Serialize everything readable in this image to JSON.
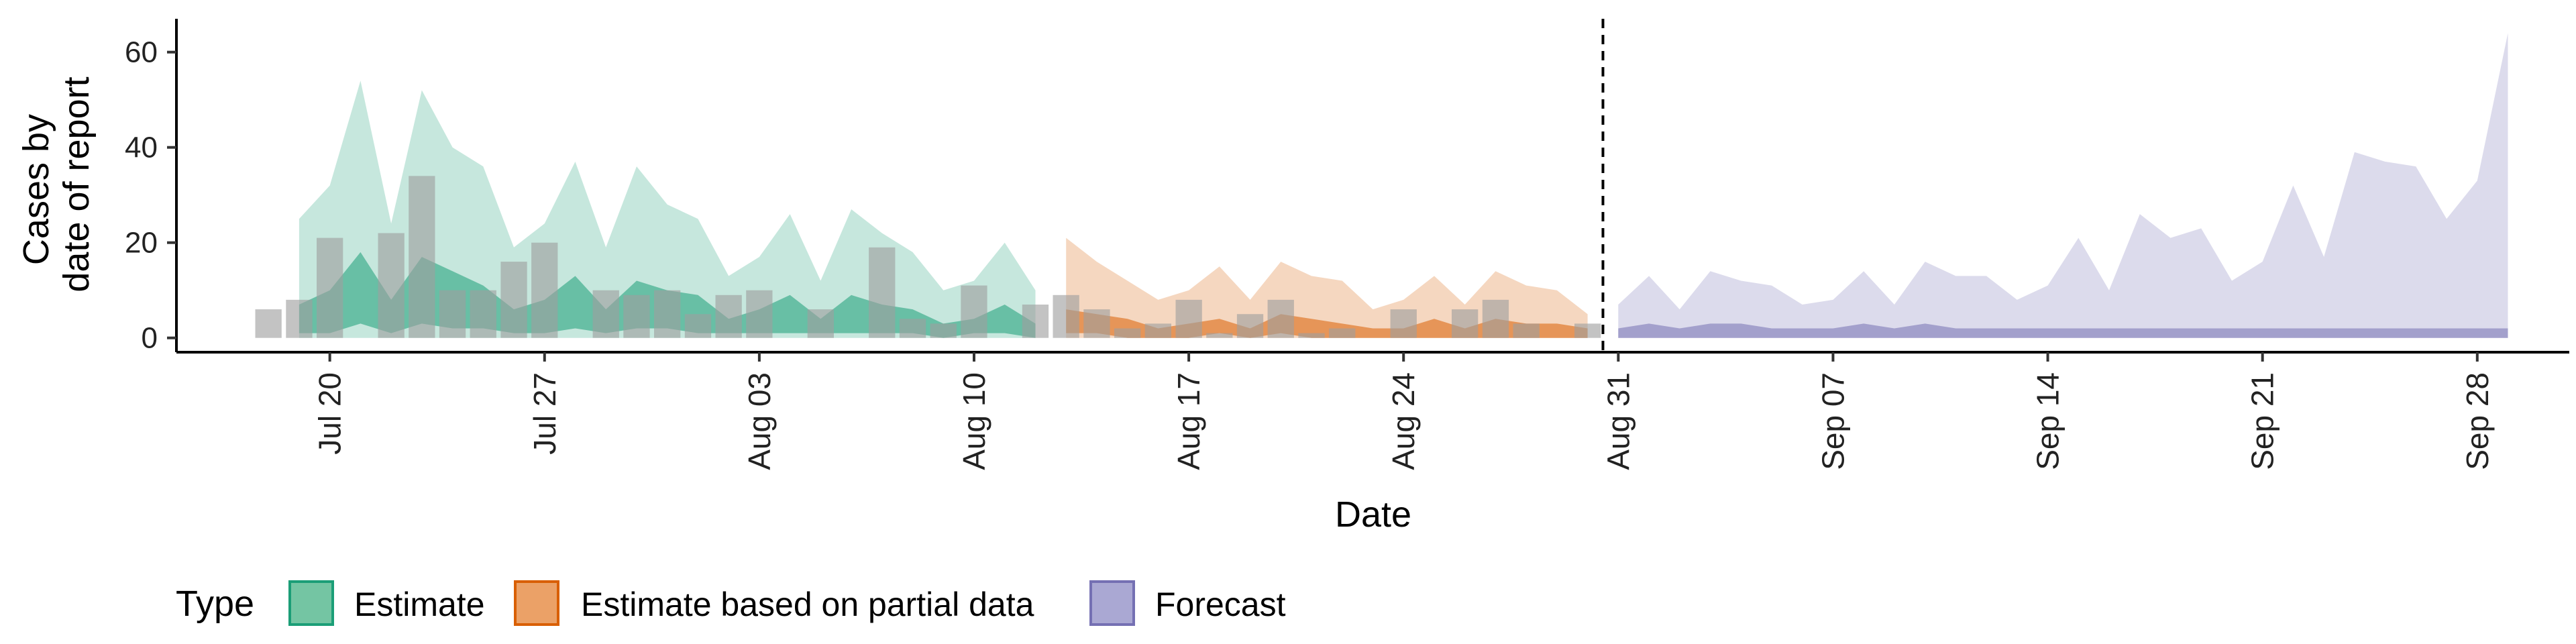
{
  "chart_data": {
    "type": "area",
    "xlabel": "Date",
    "ylabel_lines": [
      "Cases by",
      "date of report"
    ],
    "ylim": [
      -3,
      67
    ],
    "xlim": [
      "2020-07-15",
      "2020-10-01"
    ],
    "y_ticks": [
      0,
      20,
      40,
      60
    ],
    "x_ticks": [
      {
        "date": "2020-07-20",
        "label": "Jul 20"
      },
      {
        "date": "2020-07-27",
        "label": "Jul 27"
      },
      {
        "date": "2020-08-03",
        "label": "Aug 03"
      },
      {
        "date": "2020-08-10",
        "label": "Aug 10"
      },
      {
        "date": "2020-08-17",
        "label": "Aug 17"
      },
      {
        "date": "2020-08-24",
        "label": "Aug 24"
      },
      {
        "date": "2020-08-31",
        "label": "Aug 31"
      },
      {
        "date": "2020-09-07",
        "label": "Sep 07"
      },
      {
        "date": "2020-09-14",
        "label": "Sep 14"
      },
      {
        "date": "2020-09-21",
        "label": "Sep 21"
      },
      {
        "date": "2020-09-28",
        "label": "Sep 28"
      }
    ],
    "reference_line_date": "2020-08-30",
    "grid": false,
    "legend": {
      "position": "bottom",
      "title": "Type",
      "entries": [
        {
          "label": "Estimate",
          "fill": "#74c5a3",
          "stroke": "#1b9e77"
        },
        {
          "label": "Estimate based on partial data",
          "fill": "#eba167",
          "stroke": "#d95f02"
        },
        {
          "label": "Forecast",
          "fill": "#aaa8d3",
          "stroke": "#7570b3"
        }
      ]
    },
    "bars": {
      "color": "#9e9e9e",
      "dates": [
        "2020-07-18",
        "2020-07-19",
        "2020-07-20",
        "2020-07-21",
        "2020-07-22",
        "2020-07-23",
        "2020-07-24",
        "2020-07-25",
        "2020-07-26",
        "2020-07-27",
        "2020-07-28",
        "2020-07-29",
        "2020-07-30",
        "2020-07-31",
        "2020-08-01",
        "2020-08-02",
        "2020-08-03",
        "2020-08-04",
        "2020-08-05",
        "2020-08-06",
        "2020-08-07",
        "2020-08-08",
        "2020-08-09",
        "2020-08-10",
        "2020-08-11",
        "2020-08-12",
        "2020-08-13",
        "2020-08-14",
        "2020-08-15",
        "2020-08-16",
        "2020-08-17",
        "2020-08-18",
        "2020-08-19",
        "2020-08-20",
        "2020-08-21",
        "2020-08-22",
        "2020-08-23",
        "2020-08-24",
        "2020-08-25",
        "2020-08-26",
        "2020-08-27",
        "2020-08-28",
        "2020-08-29",
        "2020-08-30"
      ],
      "values": [
        6,
        8,
        21,
        0,
        22,
        34,
        10,
        10,
        16,
        20,
        0,
        10,
        9,
        10,
        5,
        9,
        10,
        0,
        6,
        0,
        19,
        4,
        3,
        11,
        0,
        7,
        9,
        6,
        2,
        3,
        8,
        1,
        5,
        8,
        1,
        2,
        0,
        6,
        0,
        6,
        8,
        3,
        0,
        3
      ]
    },
    "series": [
      {
        "name": "Estimate",
        "fill": "#1b9e77",
        "outer_opacity": 0.25,
        "inner_opacity": 0.55,
        "dates": [
          "2020-07-19",
          "2020-07-20",
          "2020-07-21",
          "2020-07-22",
          "2020-07-23",
          "2020-07-24",
          "2020-07-25",
          "2020-07-26",
          "2020-07-27",
          "2020-07-28",
          "2020-07-29",
          "2020-07-30",
          "2020-07-31",
          "2020-08-01",
          "2020-08-02",
          "2020-08-03",
          "2020-08-04",
          "2020-08-05",
          "2020-08-06",
          "2020-08-07",
          "2020-08-08",
          "2020-08-09",
          "2020-08-10",
          "2020-08-11",
          "2020-08-12"
        ],
        "upper_90": [
          25,
          32,
          54,
          24,
          52,
          40,
          36,
          19,
          24,
          37,
          19,
          36,
          28,
          25,
          13,
          17,
          26,
          12,
          27,
          22,
          18,
          10,
          12,
          20,
          10
        ],
        "lower_90": [
          0,
          0,
          0,
          0,
          0,
          0,
          0,
          0,
          0,
          0,
          0,
          0,
          0,
          0,
          0,
          0,
          0,
          0,
          0,
          0,
          0,
          0,
          0,
          0,
          0
        ],
        "upper_50": [
          7,
          10,
          18,
          8,
          17,
          14,
          11,
          6,
          8,
          13,
          6,
          12,
          10,
          9,
          4,
          6,
          9,
          4,
          9,
          7,
          6,
          3,
          4,
          7,
          3
        ],
        "lower_50": [
          1,
          1,
          3,
          1,
          3,
          2,
          2,
          1,
          1,
          2,
          1,
          2,
          2,
          1,
          1,
          1,
          1,
          1,
          1,
          1,
          1,
          0,
          1,
          1,
          0
        ]
      },
      {
        "name": "Estimate based on partial data",
        "fill": "#d95f02",
        "outer_opacity": 0.25,
        "inner_opacity": 0.55,
        "dates": [
          "2020-08-13",
          "2020-08-14",
          "2020-08-15",
          "2020-08-16",
          "2020-08-17",
          "2020-08-18",
          "2020-08-19",
          "2020-08-20",
          "2020-08-21",
          "2020-08-22",
          "2020-08-23",
          "2020-08-24",
          "2020-08-25",
          "2020-08-26",
          "2020-08-27",
          "2020-08-28",
          "2020-08-29",
          "2020-08-30"
        ],
        "upper_90": [
          21,
          16,
          12,
          8,
          10,
          15,
          8,
          16,
          13,
          12,
          6,
          8,
          13,
          7,
          14,
          11,
          10,
          5
        ],
        "lower_90": [
          0,
          0,
          0,
          0,
          0,
          0,
          0,
          0,
          0,
          0,
          0,
          0,
          0,
          0,
          0,
          0,
          0,
          0
        ],
        "upper_50": [
          6,
          5,
          4,
          2,
          3,
          4,
          2,
          5,
          4,
          3,
          2,
          2,
          4,
          2,
          4,
          3,
          3,
          2
        ],
        "lower_50": [
          1,
          1,
          0,
          0,
          0,
          1,
          0,
          1,
          0,
          0,
          0,
          0,
          0,
          0,
          0,
          0,
          0,
          0
        ]
      },
      {
        "name": "Forecast",
        "fill": "#7570b3",
        "outer_opacity": 0.25,
        "inner_opacity": 0.55,
        "dates": [
          "2020-08-31",
          "2020-09-01",
          "2020-09-02",
          "2020-09-03",
          "2020-09-04",
          "2020-09-05",
          "2020-09-06",
          "2020-09-07",
          "2020-09-08",
          "2020-09-09",
          "2020-09-10",
          "2020-09-11",
          "2020-09-12",
          "2020-09-13",
          "2020-09-14",
          "2020-09-15",
          "2020-09-16",
          "2020-09-17",
          "2020-09-18",
          "2020-09-19",
          "2020-09-20",
          "2020-09-21",
          "2020-09-22",
          "2020-09-23",
          "2020-09-24",
          "2020-09-25",
          "2020-09-26",
          "2020-09-27",
          "2020-09-28",
          "2020-09-29"
        ],
        "upper_90": [
          7,
          13,
          6,
          14,
          12,
          11,
          7,
          8,
          14,
          7,
          16,
          13,
          13,
          8,
          11,
          21,
          10,
          26,
          21,
          23,
          12,
          16,
          32,
          17,
          39,
          37,
          36,
          25,
          33,
          64
        ],
        "lower_90": [
          0,
          0,
          0,
          0,
          0,
          0,
          0,
          0,
          0,
          0,
          0,
          0,
          0,
          0,
          0,
          0,
          0,
          0,
          0,
          0,
          0,
          0,
          0,
          0,
          0,
          0,
          0,
          0,
          0,
          0
        ],
        "upper_50": [
          2,
          3,
          2,
          3,
          3,
          2,
          2,
          2,
          3,
          2,
          3,
          2,
          2,
          2,
          2,
          2,
          2,
          2,
          2,
          2,
          2,
          2,
          2,
          2,
          2,
          2,
          2,
          2,
          2,
          2
        ],
        "lower_50": [
          0,
          0,
          0,
          0,
          0,
          0,
          0,
          0,
          0,
          0,
          0,
          0,
          0,
          0,
          0,
          0,
          0,
          0,
          0,
          0,
          0,
          0,
          0,
          0,
          0,
          0,
          0,
          0,
          0,
          0
        ]
      }
    ]
  }
}
